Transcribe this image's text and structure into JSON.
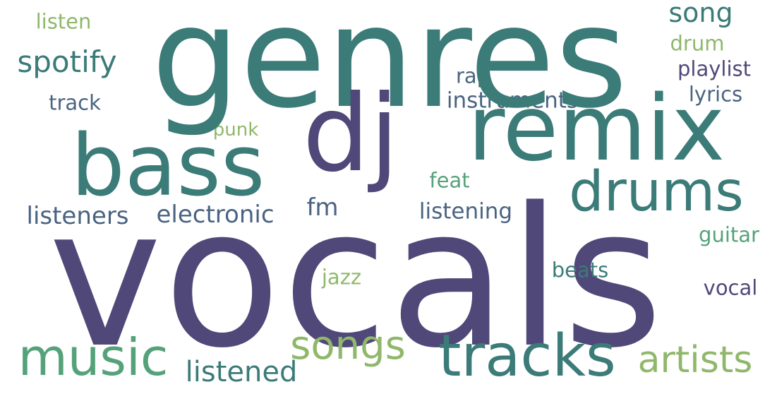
{
  "words": {
    "vocals": "vocals",
    "genres": "genres",
    "dj": "dj",
    "remix": "remix",
    "bass": "bass",
    "drums": "drums",
    "tracks": "tracks",
    "music": "music",
    "songs": "songs",
    "artists": "artists",
    "spotify": "spotify",
    "song": "song",
    "listened": "listened",
    "listeners": "listeners",
    "electronic": "electronic",
    "fm": "fm",
    "listening": "listening",
    "instruments": "instruments",
    "playlist": "playlist",
    "lyrics": "lyrics",
    "track": "track",
    "rap": "rap",
    "listen": "listen",
    "drum": "drum",
    "punk": "punk",
    "feat": "feat",
    "guitar": "guitar",
    "beats": "beats",
    "jazz": "jazz",
    "vocal": "vocal"
  },
  "colors": {
    "purple": "#4f4878",
    "teal": "#3b7b78",
    "teal2": "#46857a",
    "slate": "#4a6381",
    "green": "#55a27a",
    "lime": "#8fb86a",
    "background": "#ffffff"
  }
}
